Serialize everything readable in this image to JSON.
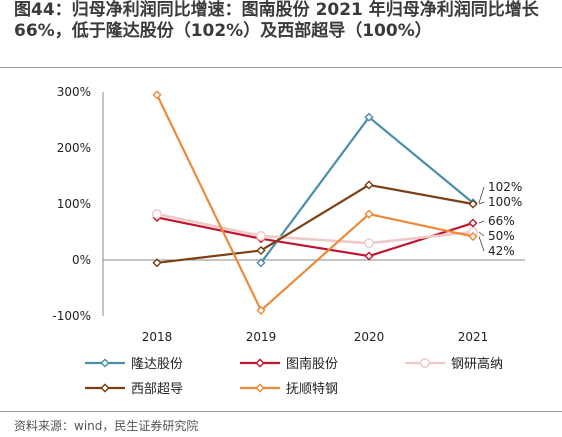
{
  "header": {
    "title": "图44：归母净利润同比增速：图南股份 2021 年归母净利润同比增长 66%，低于隆达股份（102%）及西部超导（100%）"
  },
  "footer": {
    "source": "资料来源：wind，民生证券研究院"
  },
  "chart_data": {
    "type": "line",
    "categories": [
      "2018",
      "2019",
      "2020",
      "2021"
    ],
    "y_ticks": [
      "300%",
      "200%",
      "100%",
      "0%",
      "-100%"
    ],
    "ylim": [
      -100,
      300
    ],
    "grid": false,
    "legend_position": "bottom",
    "series": [
      {
        "name": "隆达股份",
        "color": "#4a8ea8",
        "values": [
          null,
          -5,
          255,
          102
        ]
      },
      {
        "name": "图南股份",
        "color": "#c0152f",
        "values": [
          76,
          38,
          7,
          66
        ]
      },
      {
        "name": "钢研高纳",
        "color": "#efc8c8",
        "values": [
          82,
          43,
          30,
          50
        ]
      },
      {
        "name": "西部超导",
        "color": "#7b3f12",
        "values": [
          -5,
          17,
          134,
          100
        ]
      },
      {
        "name": "抚顺特钢",
        "color": "#ed8a3a",
        "values": [
          295,
          -90,
          82,
          42
        ]
      }
    ],
    "end_labels": [
      "102%",
      "100%",
      "66%",
      "50%",
      "42%"
    ]
  }
}
